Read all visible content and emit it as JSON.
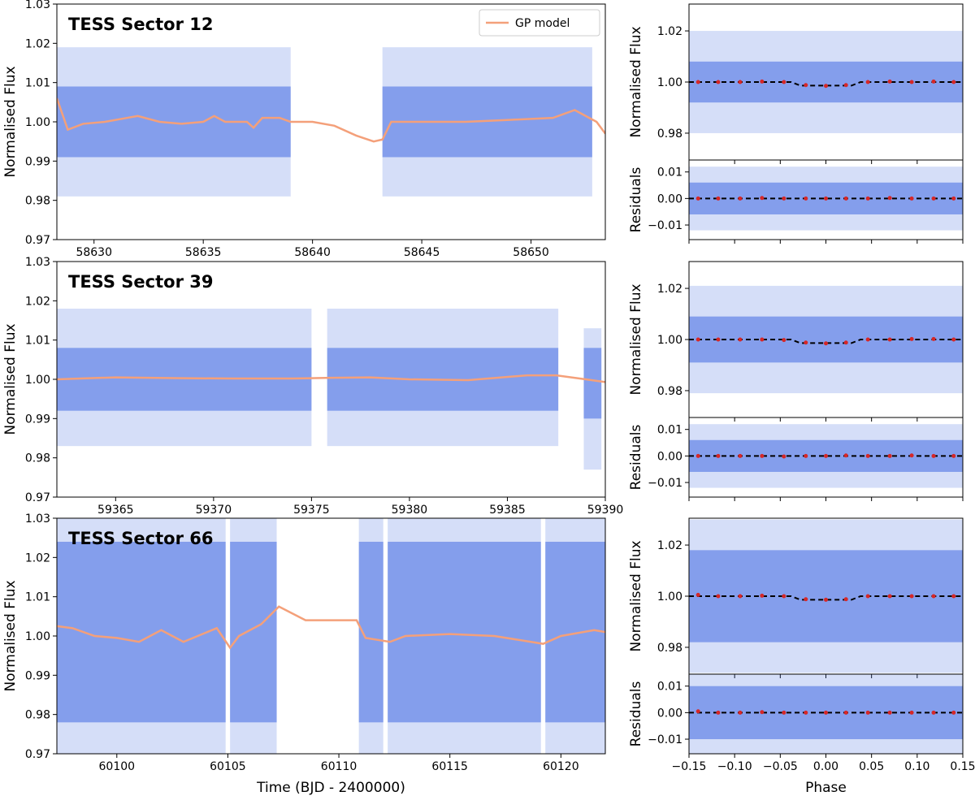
{
  "chart_data": [
    {
      "type": "line",
      "title": "TESS Sector 12",
      "ylabel": "Normalised Flux",
      "xlim": [
        58628.3,
        58653.4
      ],
      "ylim": [
        0.97,
        1.03
      ],
      "xticks": [
        58630,
        58635,
        58640,
        58645,
        58650
      ],
      "yticks": [
        0.97,
        0.98,
        0.99,
        {
          "value": 1.0,
          "label": "1.00"
        },
        1.01,
        1.02,
        1.03
      ],
      "legend": "upper right",
      "bands": {
        "color": "#4169e1",
        "segments": [
          {
            "x": [
              58628.3,
              58639.0
            ],
            "outer": [
              0.981,
              1.019
            ],
            "inner": [
              0.991,
              1.009
            ]
          },
          {
            "x": [
              58643.2,
              58652.8
            ],
            "outer": [
              0.981,
              1.019
            ],
            "inner": [
              0.991,
              1.009
            ]
          }
        ]
      },
      "series": [
        {
          "name": "GP model",
          "color": "#f4a07a",
          "style": "line",
          "x": [
            58628.3,
            58628.8,
            58629.5,
            58630.5,
            58631.5,
            58632,
            58633,
            58634,
            58635,
            58635.5,
            58636,
            58637,
            58637.3,
            58637.7,
            58638.5,
            58639,
            58640,
            58641,
            58642,
            58642.8,
            58643.2,
            58643.6,
            58645,
            58647,
            58649,
            58651,
            58652,
            58653,
            58653.4
          ],
          "values": [
            1.006,
            0.998,
            0.9995,
            1.0,
            1.001,
            1.0015,
            1.0,
            0.9995,
            1.0,
            1.0015,
            1.0,
            1.0,
            0.9985,
            1.001,
            1.001,
            1.0,
            1.0,
            0.999,
            0.9965,
            0.995,
            0.9955,
            1.0,
            1.0,
            1.0,
            1.0005,
            1.001,
            1.003,
            1.0,
            0.997
          ]
        }
      ]
    },
    {
      "type": "scatter",
      "ylabel": "Normalised Flux",
      "xlim": [
        -0.15,
        0.15
      ],
      "ylim": [
        0.9695,
        1.0305
      ],
      "yticks": [
        0.98,
        {
          "value": 1.0,
          "label": "1.00"
        },
        1.02
      ],
      "bands": {
        "color": "#4169e1",
        "segments": [
          {
            "x": [
              -0.15,
              0.15
            ],
            "outer": [
              0.98,
              1.02
            ],
            "inner": [
              0.992,
              1.008
            ]
          }
        ]
      },
      "series": [
        {
          "color": "#000000",
          "style": "dashed",
          "x": [
            -0.15,
            -0.038,
            -0.028,
            0.028,
            0.038,
            0.15
          ],
          "values": [
            1.0,
            1.0,
            0.9986,
            0.9986,
            1.0,
            1.0
          ]
        },
        {
          "color": "#d62728",
          "style": "points",
          "x": [
            -0.14,
            -0.118,
            -0.094,
            -0.07,
            -0.046,
            -0.022,
            0,
            0.022,
            0.046,
            0.07,
            0.094,
            0.118,
            0.14
          ],
          "values": [
            1.0,
            1.0,
            1.0,
            1.0002,
            1.0,
            0.9988,
            0.9985,
            0.9988,
            1.0,
            1.0002,
            1.0,
            1.0002,
            1.0
          ]
        }
      ]
    },
    {
      "type": "scatter",
      "ylabel": "Residuals",
      "xlim": [
        -0.15,
        0.15
      ],
      "ylim": [
        -0.0155,
        0.0145
      ],
      "yticks": [
        {
          "value": -0.01,
          "label": "−0.01"
        },
        {
          "value": 0.0,
          "label": "0.00"
        },
        0.01
      ],
      "bands": {
        "color": "#4169e1",
        "segments": [
          {
            "x": [
              -0.15,
              0.15
            ],
            "outer": [
              -0.012,
              0.012
            ],
            "inner": [
              -0.006,
              0.006
            ]
          }
        ]
      },
      "series": [
        {
          "color": "#000000",
          "style": "dashed",
          "x": [
            -0.15,
            0.15
          ],
          "values": [
            0,
            0
          ]
        },
        {
          "color": "#d62728",
          "style": "points",
          "x": [
            -0.14,
            -0.118,
            -0.094,
            -0.07,
            -0.046,
            -0.022,
            0,
            0.022,
            0.046,
            0.07,
            0.094,
            0.118,
            0.14
          ],
          "values": [
            0,
            0,
            0,
            0.0002,
            0,
            0,
            0,
            0,
            0,
            0.0002,
            0,
            0,
            0
          ]
        }
      ]
    },
    {
      "type": "line",
      "title": "TESS Sector 39",
      "ylabel": "Normalised Flux",
      "xlim": [
        59362,
        59390
      ],
      "ylim": [
        0.97,
        1.03
      ],
      "xticks": [
        59365,
        59370,
        59375,
        59380,
        59385,
        59390
      ],
      "yticks": [
        0.97,
        0.98,
        0.99,
        {
          "value": 1.0,
          "label": "1.00"
        },
        1.01,
        1.02,
        1.03
      ],
      "bands": {
        "color": "#4169e1",
        "segments": [
          {
            "x": [
              59362,
              59375
            ],
            "outer": [
              0.983,
              1.018
            ],
            "inner": [
              0.992,
              1.008
            ]
          },
          {
            "x": [
              59375.8,
              59387.6
            ],
            "outer": [
              0.983,
              1.018
            ],
            "inner": [
              0.992,
              1.008
            ]
          },
          {
            "x": [
              59388.9,
              59389.8
            ],
            "outer": [
              0.977,
              1.013
            ],
            "inner": [
              0.99,
              1.008
            ]
          }
        ]
      },
      "series": [
        {
          "color": "#f4a07a",
          "style": "line",
          "x": [
            59362,
            59365,
            59368,
            59371,
            59374,
            59376,
            59378,
            59380,
            59383,
            59386,
            59387.5,
            59389,
            59390
          ],
          "values": [
            1.0,
            1.0005,
            1.0003,
            1.0002,
            1.0002,
            1.0004,
            1.0005,
            1.0,
            0.9998,
            1.001,
            1.001,
            1.0,
            0.9993
          ]
        }
      ]
    },
    {
      "type": "scatter",
      "ylabel": "Normalised Flux",
      "xlim": [
        -0.15,
        0.15
      ],
      "ylim": [
        0.9695,
        1.0305
      ],
      "yticks": [
        0.98,
        {
          "value": 1.0,
          "label": "1.00"
        },
        1.02
      ],
      "bands": {
        "color": "#4169e1",
        "segments": [
          {
            "x": [
              -0.15,
              0.15
            ],
            "outer": [
              0.979,
              1.021
            ],
            "inner": [
              0.991,
              1.009
            ]
          }
        ]
      },
      "series": [
        {
          "color": "#000000",
          "style": "dashed",
          "x": [
            -0.15,
            -0.038,
            -0.028,
            0.028,
            0.038,
            0.15
          ],
          "values": [
            1.0,
            1.0,
            0.9986,
            0.9986,
            1.0,
            1.0
          ]
        },
        {
          "color": "#d62728",
          "style": "points",
          "x": [
            -0.14,
            -0.118,
            -0.094,
            -0.07,
            -0.046,
            -0.022,
            0,
            0.022,
            0.046,
            0.07,
            0.094,
            0.118,
            0.14
          ],
          "values": [
            1.0,
            1.0,
            1.0,
            1.0,
            0.9998,
            0.9988,
            0.9985,
            0.9988,
            1.0,
            1.0,
            1.0002,
            1.0002,
            1.0
          ]
        }
      ]
    },
    {
      "type": "scatter",
      "ylabel": "Residuals",
      "xlim": [
        -0.15,
        0.15
      ],
      "ylim": [
        -0.0155,
        0.0145
      ],
      "yticks": [
        {
          "value": -0.01,
          "label": "−0.01"
        },
        {
          "value": 0.0,
          "label": "0.00"
        },
        0.01
      ],
      "bands": {
        "color": "#4169e1",
        "segments": [
          {
            "x": [
              -0.15,
              0.15
            ],
            "outer": [
              -0.012,
              0.012
            ],
            "inner": [
              -0.006,
              0.006
            ]
          }
        ]
      },
      "series": [
        {
          "color": "#000000",
          "style": "dashed",
          "x": [
            -0.15,
            0.15
          ],
          "values": [
            0,
            0
          ]
        },
        {
          "color": "#d62728",
          "style": "points",
          "x": [
            -0.14,
            -0.118,
            -0.094,
            -0.07,
            -0.046,
            -0.022,
            0,
            0.022,
            0.046,
            0.07,
            0.094,
            0.118,
            0.14
          ],
          "values": [
            0,
            0,
            0,
            0,
            -0.0002,
            0,
            0,
            0.0002,
            0,
            0,
            0.0002,
            0,
            0
          ]
        }
      ]
    },
    {
      "type": "line",
      "title": "TESS Sector 66",
      "ylabel": "Normalised Flux",
      "xlabel": "Time (BJD - 2400000)",
      "xlim": [
        60097.3,
        60122
      ],
      "ylim": [
        0.97,
        1.03
      ],
      "xticks": [
        60100,
        60105,
        60110,
        60115,
        60120
      ],
      "yticks": [
        0.97,
        0.98,
        0.99,
        {
          "value": 1.0,
          "label": "1.00"
        },
        1.01,
        1.02,
        1.03
      ],
      "bands": {
        "color": "#4169e1",
        "segments": [
          {
            "x": [
              60097.3,
              60104.9
            ],
            "outer": [
              0.97,
              1.03
            ],
            "inner": [
              0.978,
              1.024
            ]
          },
          {
            "x": [
              60105.1,
              60107.2
            ],
            "outer": [
              0.97,
              1.03
            ],
            "inner": [
              0.978,
              1.024
            ]
          },
          {
            "x": [
              60110.9,
              60112
            ],
            "outer": [
              0.97,
              1.03
            ],
            "inner": [
              0.978,
              1.024
            ]
          },
          {
            "x": [
              60112.2,
              60119.1
            ],
            "outer": [
              0.97,
              1.03
            ],
            "inner": [
              0.978,
              1.024
            ]
          },
          {
            "x": [
              60119.3,
              60122
            ],
            "outer": [
              0.97,
              1.03
            ],
            "inner": [
              0.978,
              1.024
            ]
          }
        ]
      },
      "series": [
        {
          "color": "#f4a07a",
          "style": "line",
          "x": [
            60097.3,
            60098,
            60099,
            60100,
            60101,
            60102,
            60103,
            60104.5,
            60105.1,
            60105.5,
            60106.5,
            60107.3,
            60108.5,
            60110,
            60110.8,
            60111.2,
            60112.3,
            60113,
            60115,
            60117,
            60119.2,
            60120,
            60121.5,
            60122
          ],
          "values": [
            1.0025,
            1.002,
            1.0,
            0.9995,
            0.9985,
            1.0015,
            0.9985,
            1.002,
            0.997,
            1.0,
            1.003,
            1.0075,
            1.004,
            1.004,
            1.004,
            0.9995,
            0.9985,
            1.0,
            1.0005,
            1.0,
            0.998,
            1.0,
            1.0015,
            1.001
          ]
        }
      ]
    },
    {
      "type": "scatter",
      "ylabel": "Normalised Flux",
      "xlim": [
        -0.15,
        0.15
      ],
      "ylim": [
        0.9695,
        1.0305
      ],
      "yticks": [
        0.98,
        {
          "value": 1.0,
          "label": "1.00"
        },
        1.02
      ],
      "bands": {
        "color": "#4169e1",
        "segments": [
          {
            "x": [
              -0.15,
              0.15
            ],
            "outer": [
              0.97,
              1.03
            ],
            "inner": [
              0.982,
              1.018
            ]
          }
        ]
      },
      "series": [
        {
          "color": "#000000",
          "style": "dashed",
          "x": [
            -0.15,
            -0.038,
            -0.028,
            0.028,
            0.038,
            0.15
          ],
          "values": [
            1.0,
            1.0,
            0.9986,
            0.9986,
            1.0,
            1.0
          ]
        },
        {
          "color": "#d62728",
          "style": "points",
          "x": [
            -0.14,
            -0.118,
            -0.094,
            -0.07,
            -0.046,
            -0.022,
            0,
            0.022,
            0.046,
            0.07,
            0.094,
            0.118,
            0.14
          ],
          "values": [
            1.0005,
            1.0,
            1.0,
            1.0002,
            1.0,
            0.9988,
            0.9986,
            0.9988,
            1.0,
            1.0,
            1.0,
            1.0,
            1.0
          ]
        }
      ]
    },
    {
      "type": "scatter",
      "ylabel": "Residuals",
      "xlabel": "Phase",
      "xlim": [
        -0.15,
        0.15
      ],
      "ylim": [
        -0.0155,
        0.0145
      ],
      "xticks": [
        {
          "value": -0.15,
          "label": "−0.15"
        },
        {
          "value": -0.1,
          "label": "−0.10"
        },
        {
          "value": -0.05,
          "label": "−0.05"
        },
        {
          "value": 0.0,
          "label": "0.00"
        },
        0.05,
        {
          "value": 0.1,
          "label": "0.10"
        },
        0.15
      ],
      "yticks": [
        {
          "value": -0.01,
          "label": "−0.01"
        },
        {
          "value": 0.0,
          "label": "0.00"
        },
        0.01
      ],
      "bands": {
        "color": "#4169e1",
        "segments": [
          {
            "x": [
              -0.15,
              0.15
            ],
            "outer": [
              -0.0155,
              0.0145
            ],
            "inner": [
              -0.01,
              0.01
            ]
          }
        ]
      },
      "series": [
        {
          "color": "#000000",
          "style": "dashed",
          "x": [
            -0.15,
            0.15
          ],
          "values": [
            0,
            0
          ]
        },
        {
          "color": "#d62728",
          "style": "points",
          "x": [
            -0.14,
            -0.118,
            -0.094,
            -0.07,
            -0.046,
            -0.022,
            0,
            0.022,
            0.046,
            0.07,
            0.094,
            0.118,
            0.14
          ],
          "values": [
            0.0005,
            0,
            0,
            0.0002,
            0,
            0,
            0,
            0,
            0,
            0,
            0,
            0,
            0
          ]
        }
      ]
    }
  ]
}
